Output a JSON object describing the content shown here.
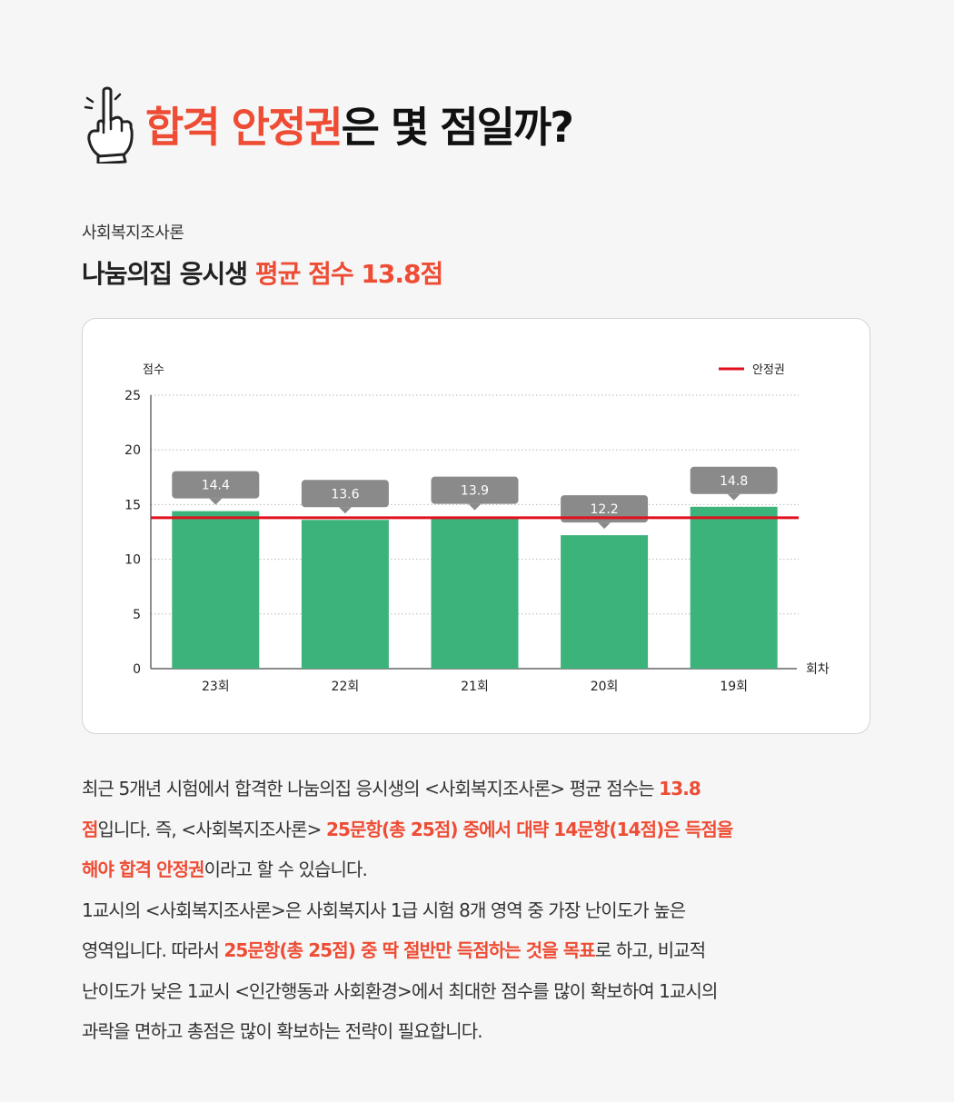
{
  "header": {
    "title_red": "합격 안정권",
    "title_dark": "은 몇 점일까?"
  },
  "subject": "사회복지조사론",
  "summary": {
    "prefix": "나눔의집 응시생 ",
    "highlight": "평균 점수 13.8점"
  },
  "chart_data": {
    "type": "bar",
    "categories": [
      "23회",
      "22회",
      "21회",
      "20회",
      "19회"
    ],
    "values": [
      14.4,
      13.6,
      13.9,
      12.2,
      14.8
    ],
    "value_labels": [
      "14.4",
      "13.6",
      "13.9",
      "12.2",
      "14.8"
    ],
    "ylabel": "점수",
    "xlabel": "회차",
    "ylim": [
      0,
      25
    ],
    "yticks": [
      0,
      5,
      10,
      15,
      20,
      25
    ],
    "reference_line": {
      "name": "안정권",
      "value": 13.8,
      "color": "#e0101e"
    },
    "legend_position": "top-right",
    "bar_color": "#3db37c",
    "label_box_color": "#8a8a8a",
    "grid": "dotted horizontal"
  },
  "paragraph": {
    "lines": [
      [
        {
          "t": "최근 5개년 시험에서 합격한 나눔의집 응시생의 <사회복지조사론> 평균 점수는 "
        },
        {
          "t": "13.8",
          "h": true
        }
      ],
      [
        {
          "t": "점",
          "h": true
        },
        {
          "t": "입니다. 즉, <사회복지조사론> "
        },
        {
          "t": "25문항(총 25점) 중에서 대략 14문항(14점)은 득점을",
          "h": true
        }
      ],
      [
        {
          "t": "해야 합격 안정권",
          "h": true
        },
        {
          "t": "이라고 할 수 있습니다."
        }
      ],
      [
        {
          "t": "1교시의 <사회복지조사론>은 사회복지사 1급 시험 8개 영역 중 가장 난이도가 높은"
        }
      ],
      [
        {
          "t": "영역입니다. 따라서 "
        },
        {
          "t": "25문항(총 25점) 중 딱 절반만 득점하는 것을 목표",
          "h": true
        },
        {
          "t": "로 하고, 비교적"
        }
      ],
      [
        {
          "t": "난이도가 낮은 1교시 <인간행동과 사회환경>에서 최대한 점수를 많이 확보하여 1교시의"
        }
      ],
      [
        {
          "t": "과락을 면하고 총점은 많이 확보하는 전략이 필요합니다."
        }
      ]
    ]
  },
  "colors": {
    "accent": "#ee4c34",
    "bar": "#3db37c",
    "reference": "#e0101e"
  },
  "icons": {
    "header_icon": "pointing-hand-icon"
  }
}
